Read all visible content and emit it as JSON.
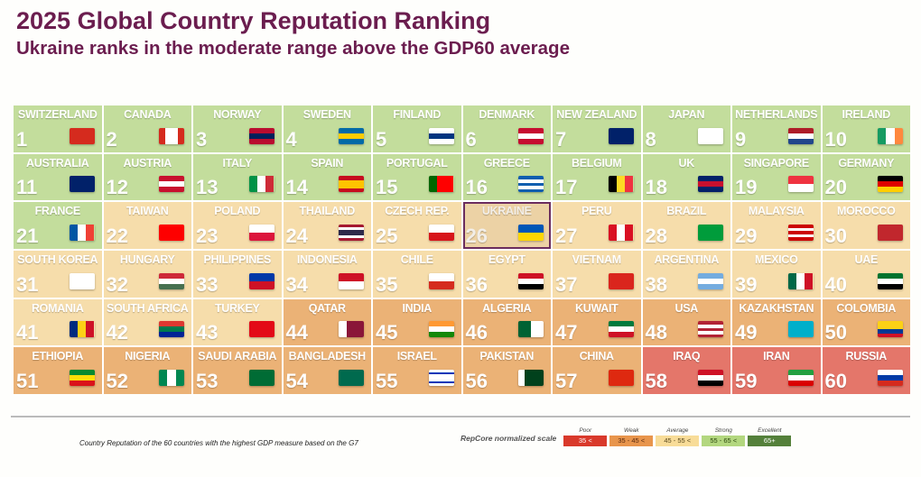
{
  "title": "2025 Global Country Reputation Ranking",
  "subtitle": "Ukraine ranks in the moderate range above the GDP60 average",
  "footnote": "Country Reputation of the 60 countries with the highest GDP measure based on the G7",
  "colors": {
    "strong": "#c3dd9c",
    "average": "#f6ddab",
    "weak": "#ebb276",
    "poor": "#e4766a",
    "selected": "#ecd2a5"
  },
  "countries": [
    {
      "name": "SWITZERLAND",
      "rank": "1",
      "tier": "strong",
      "flag": {
        "d": "h",
        "c": [
          "#d52b1e"
        ]
      },
      "icon": "switzerland-flag-icon"
    },
    {
      "name": "CANADA",
      "rank": "2",
      "tier": "strong",
      "flag": {
        "d": "v",
        "c": [
          "#d52b1e",
          "#fff",
          "#fff",
          "#d52b1e"
        ]
      },
      "icon": "canada-flag-icon"
    },
    {
      "name": "NORWAY",
      "rank": "3",
      "tier": "strong",
      "flag": {
        "d": "h",
        "c": [
          "#ba0c2f",
          "#00205b",
          "#ba0c2f"
        ]
      },
      "icon": "norway-flag-icon"
    },
    {
      "name": "SWEDEN",
      "rank": "4",
      "tier": "strong",
      "flag": {
        "d": "h",
        "c": [
          "#006aa7",
          "#fecc00",
          "#006aa7"
        ]
      },
      "icon": "sweden-flag-icon"
    },
    {
      "name": "FINLAND",
      "rank": "5",
      "tier": "strong",
      "flag": {
        "d": "h",
        "c": [
          "#fff",
          "#003580",
          "#fff"
        ]
      },
      "icon": "finland-flag-icon"
    },
    {
      "name": "DENMARK",
      "rank": "6",
      "tier": "strong",
      "flag": {
        "d": "h",
        "c": [
          "#c60c30",
          "#fff",
          "#c60c30"
        ]
      },
      "icon": "denmark-flag-icon"
    },
    {
      "name": "NEW ZEALAND",
      "rank": "7",
      "tier": "strong",
      "flag": {
        "d": "h",
        "c": [
          "#012169"
        ]
      },
      "icon": "new-zealand-flag-icon"
    },
    {
      "name": "JAPAN",
      "rank": "8",
      "tier": "strong",
      "flag": {
        "d": "h",
        "c": [
          "#fff"
        ]
      },
      "icon": "japan-flag-icon"
    },
    {
      "name": "NETHERLANDS",
      "rank": "9",
      "tier": "strong",
      "flag": {
        "d": "h",
        "c": [
          "#ae1c28",
          "#fff",
          "#21468b"
        ]
      },
      "icon": "netherlands-flag-icon"
    },
    {
      "name": "IRELAND",
      "rank": "10",
      "tier": "strong",
      "flag": {
        "d": "v",
        "c": [
          "#169b62",
          "#fff",
          "#ff883e"
        ]
      },
      "icon": "ireland-flag-icon"
    },
    {
      "name": "AUSTRALIA",
      "rank": "11",
      "tier": "strong",
      "flag": {
        "d": "h",
        "c": [
          "#012169"
        ]
      },
      "icon": "australia-flag-icon"
    },
    {
      "name": "AUSTRIA",
      "rank": "12",
      "tier": "strong",
      "flag": {
        "d": "h",
        "c": [
          "#c8102e",
          "#fff",
          "#c8102e"
        ]
      },
      "icon": "austria-flag-icon"
    },
    {
      "name": "ITALY",
      "rank": "13",
      "tier": "strong",
      "flag": {
        "d": "v",
        "c": [
          "#009246",
          "#fff",
          "#ce2b37"
        ]
      },
      "icon": "italy-flag-icon"
    },
    {
      "name": "SPAIN",
      "rank": "14",
      "tier": "strong",
      "flag": {
        "d": "h",
        "c": [
          "#c60b1e",
          "#ffc400",
          "#ffc400",
          "#c60b1e"
        ]
      },
      "icon": "spain-flag-icon"
    },
    {
      "name": "PORTUGAL",
      "rank": "15",
      "tier": "strong",
      "flag": {
        "d": "v",
        "c": [
          "#006600",
          "#ff0000",
          "#ff0000"
        ]
      },
      "icon": "portugal-flag-icon"
    },
    {
      "name": "GREECE",
      "rank": "16",
      "tier": "strong",
      "flag": {
        "d": "h",
        "c": [
          "#0d5eaf",
          "#fff",
          "#0d5eaf",
          "#fff",
          "#0d5eaf"
        ]
      },
      "icon": "greece-flag-icon"
    },
    {
      "name": "BELGIUM",
      "rank": "17",
      "tier": "strong",
      "flag": {
        "d": "v",
        "c": [
          "#000",
          "#fdda24",
          "#ef3340"
        ]
      },
      "icon": "belgium-flag-icon"
    },
    {
      "name": "UK",
      "rank": "18",
      "tier": "strong",
      "flag": {
        "d": "h",
        "c": [
          "#012169",
          "#c8102e",
          "#012169"
        ]
      },
      "icon": "uk-flag-icon"
    },
    {
      "name": "SINGAPORE",
      "rank": "19",
      "tier": "strong",
      "flag": {
        "d": "h",
        "c": [
          "#ef3340",
          "#fff"
        ]
      },
      "icon": "singapore-flag-icon"
    },
    {
      "name": "GERMANY",
      "rank": "20",
      "tier": "strong",
      "flag": {
        "d": "h",
        "c": [
          "#000",
          "#dd0000",
          "#ffce00"
        ]
      },
      "icon": "germany-flag-icon"
    },
    {
      "name": "FRANCE",
      "rank": "21",
      "tier": "strong",
      "flag": {
        "d": "v",
        "c": [
          "#0055a4",
          "#fff",
          "#ef4135"
        ]
      },
      "icon": "france-flag-icon"
    },
    {
      "name": "TAIWAN",
      "rank": "22",
      "tier": "average",
      "flag": {
        "d": "h",
        "c": [
          "#fe0000"
        ]
      },
      "icon": "taiwan-flag-icon"
    },
    {
      "name": "POLAND",
      "rank": "23",
      "tier": "average",
      "flag": {
        "d": "h",
        "c": [
          "#fff",
          "#dc143c"
        ]
      },
      "icon": "poland-flag-icon"
    },
    {
      "name": "THAILAND",
      "rank": "24",
      "tier": "average",
      "flag": {
        "d": "h",
        "c": [
          "#a51931",
          "#fff",
          "#2d2a4a",
          "#2d2a4a",
          "#fff",
          "#a51931"
        ]
      },
      "icon": "thailand-flag-icon"
    },
    {
      "name": "CZECH REP.",
      "rank": "25",
      "tier": "average",
      "flag": {
        "d": "h",
        "c": [
          "#fff",
          "#d7141a"
        ]
      },
      "icon": "czech-flag-icon"
    },
    {
      "name": "UKRAINE",
      "rank": "26",
      "tier": "selected",
      "flag": {
        "d": "h",
        "c": [
          "#0057b7",
          "#ffd700"
        ]
      },
      "icon": "ukraine-flag-icon"
    },
    {
      "name": "PERU",
      "rank": "27",
      "tier": "average",
      "flag": {
        "d": "v",
        "c": [
          "#d91023",
          "#fff",
          "#d91023"
        ]
      },
      "icon": "peru-flag-icon"
    },
    {
      "name": "BRAZIL",
      "rank": "28",
      "tier": "average",
      "flag": {
        "d": "h",
        "c": [
          "#009c3b"
        ]
      },
      "icon": "brazil-flag-icon"
    },
    {
      "name": "MALAYSIA",
      "rank": "29",
      "tier": "average",
      "flag": {
        "d": "h",
        "c": [
          "#cc0001",
          "#fff",
          "#cc0001",
          "#fff",
          "#cc0001"
        ]
      },
      "icon": "malaysia-flag-icon"
    },
    {
      "name": "MOROCCO",
      "rank": "30",
      "tier": "average",
      "flag": {
        "d": "h",
        "c": [
          "#c1272d"
        ]
      },
      "icon": "morocco-flag-icon"
    },
    {
      "name": "SOUTH KOREA",
      "rank": "31",
      "tier": "average",
      "flag": {
        "d": "h",
        "c": [
          "#fff"
        ]
      },
      "icon": "south-korea-flag-icon"
    },
    {
      "name": "HUNGARY",
      "rank": "32",
      "tier": "average",
      "flag": {
        "d": "h",
        "c": [
          "#ce2939",
          "#fff",
          "#477050"
        ]
      },
      "icon": "hungary-flag-icon"
    },
    {
      "name": "PHILIPPINES",
      "rank": "33",
      "tier": "average",
      "flag": {
        "d": "h",
        "c": [
          "#0038a8",
          "#ce1126"
        ]
      },
      "icon": "philippines-flag-icon"
    },
    {
      "name": "INDONESIA",
      "rank": "34",
      "tier": "average",
      "flag": {
        "d": "h",
        "c": [
          "#ce1126",
          "#fff"
        ]
      },
      "icon": "indonesia-flag-icon"
    },
    {
      "name": "CHILE",
      "rank": "35",
      "tier": "average",
      "flag": {
        "d": "h",
        "c": [
          "#fff",
          "#d52b1e"
        ]
      },
      "icon": "chile-flag-icon"
    },
    {
      "name": "EGYPT",
      "rank": "36",
      "tier": "average",
      "flag": {
        "d": "h",
        "c": [
          "#ce1126",
          "#fff",
          "#000"
        ]
      },
      "icon": "egypt-flag-icon"
    },
    {
      "name": "VIETNAM",
      "rank": "37",
      "tier": "average",
      "flag": {
        "d": "h",
        "c": [
          "#da251d"
        ]
      },
      "icon": "vietnam-flag-icon"
    },
    {
      "name": "ARGENTINA",
      "rank": "38",
      "tier": "average",
      "flag": {
        "d": "h",
        "c": [
          "#74acdf",
          "#fff",
          "#74acdf"
        ]
      },
      "icon": "argentina-flag-icon"
    },
    {
      "name": "MEXICO",
      "rank": "39",
      "tier": "average",
      "flag": {
        "d": "v",
        "c": [
          "#006847",
          "#fff",
          "#ce1126"
        ]
      },
      "icon": "mexico-flag-icon"
    },
    {
      "name": "UAE",
      "rank": "40",
      "tier": "average",
      "flag": {
        "d": "h",
        "c": [
          "#00732f",
          "#fff",
          "#000"
        ]
      },
      "icon": "uae-flag-icon"
    },
    {
      "name": "ROMANIA",
      "rank": "41",
      "tier": "average",
      "flag": {
        "d": "v",
        "c": [
          "#002b7f",
          "#fcd116",
          "#ce1126"
        ]
      },
      "icon": "romania-flag-icon"
    },
    {
      "name": "SOUTH AFRICA",
      "rank": "42",
      "tier": "average",
      "flag": {
        "d": "h",
        "c": [
          "#de3831",
          "#007a4d",
          "#002395"
        ]
      },
      "icon": "south-africa-flag-icon"
    },
    {
      "name": "TURKEY",
      "rank": "43",
      "tier": "average",
      "flag": {
        "d": "h",
        "c": [
          "#e30a17"
        ]
      },
      "icon": "turkey-flag-icon"
    },
    {
      "name": "QATAR",
      "rank": "44",
      "tier": "weak",
      "flag": {
        "d": "v",
        "c": [
          "#fff",
          "#8a1538",
          "#8a1538"
        ]
      },
      "icon": "qatar-flag-icon"
    },
    {
      "name": "INDIA",
      "rank": "45",
      "tier": "weak",
      "flag": {
        "d": "h",
        "c": [
          "#ff9933",
          "#fff",
          "#138808"
        ]
      },
      "icon": "india-flag-icon"
    },
    {
      "name": "ALGERIA",
      "rank": "46",
      "tier": "weak",
      "flag": {
        "d": "v",
        "c": [
          "#006233",
          "#fff"
        ]
      },
      "icon": "algeria-flag-icon"
    },
    {
      "name": "KUWAIT",
      "rank": "47",
      "tier": "weak",
      "flag": {
        "d": "h",
        "c": [
          "#007a3d",
          "#fff",
          "#ce1126"
        ]
      },
      "icon": "kuwait-flag-icon"
    },
    {
      "name": "USA",
      "rank": "48",
      "tier": "weak",
      "flag": {
        "d": "h",
        "c": [
          "#b22234",
          "#fff",
          "#b22234",
          "#fff",
          "#b22234"
        ]
      },
      "icon": "usa-flag-icon"
    },
    {
      "name": "KAZAKHSTAN",
      "rank": "49",
      "tier": "weak",
      "flag": {
        "d": "h",
        "c": [
          "#00afca"
        ]
      },
      "icon": "kazakhstan-flag-icon"
    },
    {
      "name": "COLOMBIA",
      "rank": "50",
      "tier": "weak",
      "flag": {
        "d": "h",
        "c": [
          "#fcd116",
          "#fcd116",
          "#003893",
          "#ce1126"
        ]
      },
      "icon": "colombia-flag-icon"
    },
    {
      "name": "ETHIOPIA",
      "rank": "51",
      "tier": "weak",
      "flag": {
        "d": "h",
        "c": [
          "#078930",
          "#fcdd09",
          "#da121a"
        ]
      },
      "icon": "ethiopia-flag-icon"
    },
    {
      "name": "NIGERIA",
      "rank": "52",
      "tier": "weak",
      "flag": {
        "d": "v",
        "c": [
          "#008751",
          "#fff",
          "#008751"
        ]
      },
      "icon": "nigeria-flag-icon"
    },
    {
      "name": "SAUDI ARABIA",
      "rank": "53",
      "tier": "weak",
      "flag": {
        "d": "h",
        "c": [
          "#006c35"
        ]
      },
      "icon": "saudi-arabia-flag-icon"
    },
    {
      "name": "BANGLADESH",
      "rank": "54",
      "tier": "weak",
      "flag": {
        "d": "h",
        "c": [
          "#006a4e"
        ]
      },
      "icon": "bangladesh-flag-icon"
    },
    {
      "name": "ISRAEL",
      "rank": "55",
      "tier": "weak",
      "flag": {
        "d": "h",
        "c": [
          "#fff",
          "#0038b8",
          "#fff",
          "#fff",
          "#fff",
          "#0038b8",
          "#fff"
        ]
      },
      "icon": "israel-flag-icon"
    },
    {
      "name": "PAKISTAN",
      "rank": "56",
      "tier": "weak",
      "flag": {
        "d": "v",
        "c": [
          "#fff",
          "#01411c",
          "#01411c",
          "#01411c"
        ]
      },
      "icon": "pakistan-flag-icon"
    },
    {
      "name": "CHINA",
      "rank": "57",
      "tier": "weak",
      "flag": {
        "d": "h",
        "c": [
          "#de2910"
        ]
      },
      "icon": "china-flag-icon"
    },
    {
      "name": "IRAQ",
      "rank": "58",
      "tier": "poor",
      "flag": {
        "d": "h",
        "c": [
          "#ce1126",
          "#fff",
          "#000"
        ]
      },
      "icon": "iraq-flag-icon"
    },
    {
      "name": "IRAN",
      "rank": "59",
      "tier": "poor",
      "flag": {
        "d": "h",
        "c": [
          "#239f40",
          "#fff",
          "#da0000"
        ]
      },
      "icon": "iran-flag-icon"
    },
    {
      "name": "RUSSIA",
      "rank": "60",
      "tier": "poor",
      "flag": {
        "d": "h",
        "c": [
          "#fff",
          "#0039a6",
          "#d52b1e"
        ]
      },
      "icon": "russia-flag-icon"
    }
  ],
  "legend": {
    "label": "RepCore normalized scale",
    "items": [
      {
        "title": "Poor",
        "range": "35 <",
        "bg": "#d9392b",
        "fg": "#ffffff"
      },
      {
        "title": "Weak",
        "range": "35 - 45 <",
        "bg": "#e8954c",
        "fg": "#5a2a10"
      },
      {
        "title": "Average",
        "range": "45 - 55 <",
        "bg": "#f8dc98",
        "fg": "#5a4a20"
      },
      {
        "title": "Strong",
        "range": "55 - 65 <",
        "bg": "#b3d77f",
        "fg": "#2e4a10"
      },
      {
        "title": "Excellent",
        "range": "65+",
        "bg": "#54803a",
        "fg": "#ffffff"
      }
    ]
  }
}
